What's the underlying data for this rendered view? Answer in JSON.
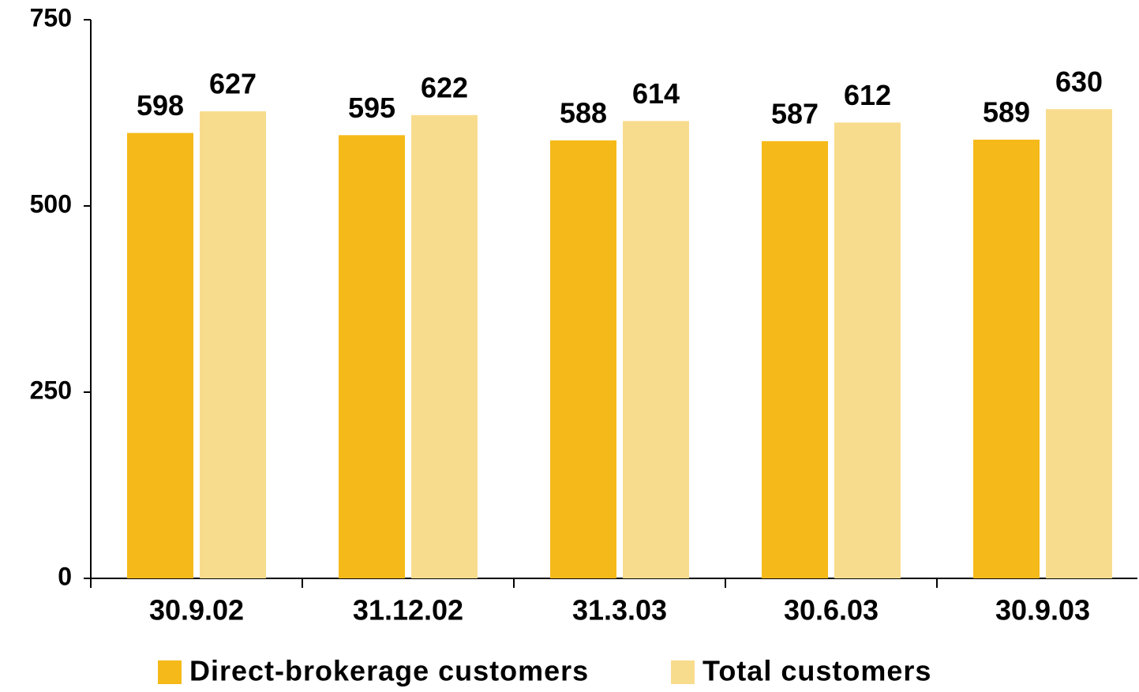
{
  "chart_data": {
    "type": "bar",
    "categories": [
      "30.9.02",
      "31.12.02",
      "31.3.03",
      "30.6.03",
      "30.9.03"
    ],
    "series": [
      {
        "name": "Direct-brokerage customers",
        "color": "#F5BA1A",
        "values": [
          598,
          595,
          588,
          587,
          589
        ]
      },
      {
        "name": "Total customers",
        "color": "#F8DC8E",
        "values": [
          627,
          622,
          614,
          612,
          630
        ]
      }
    ],
    "ylim": [
      0,
      750
    ],
    "yticks": [
      0,
      250,
      500,
      750
    ],
    "grid": false,
    "legend": "bottom"
  }
}
